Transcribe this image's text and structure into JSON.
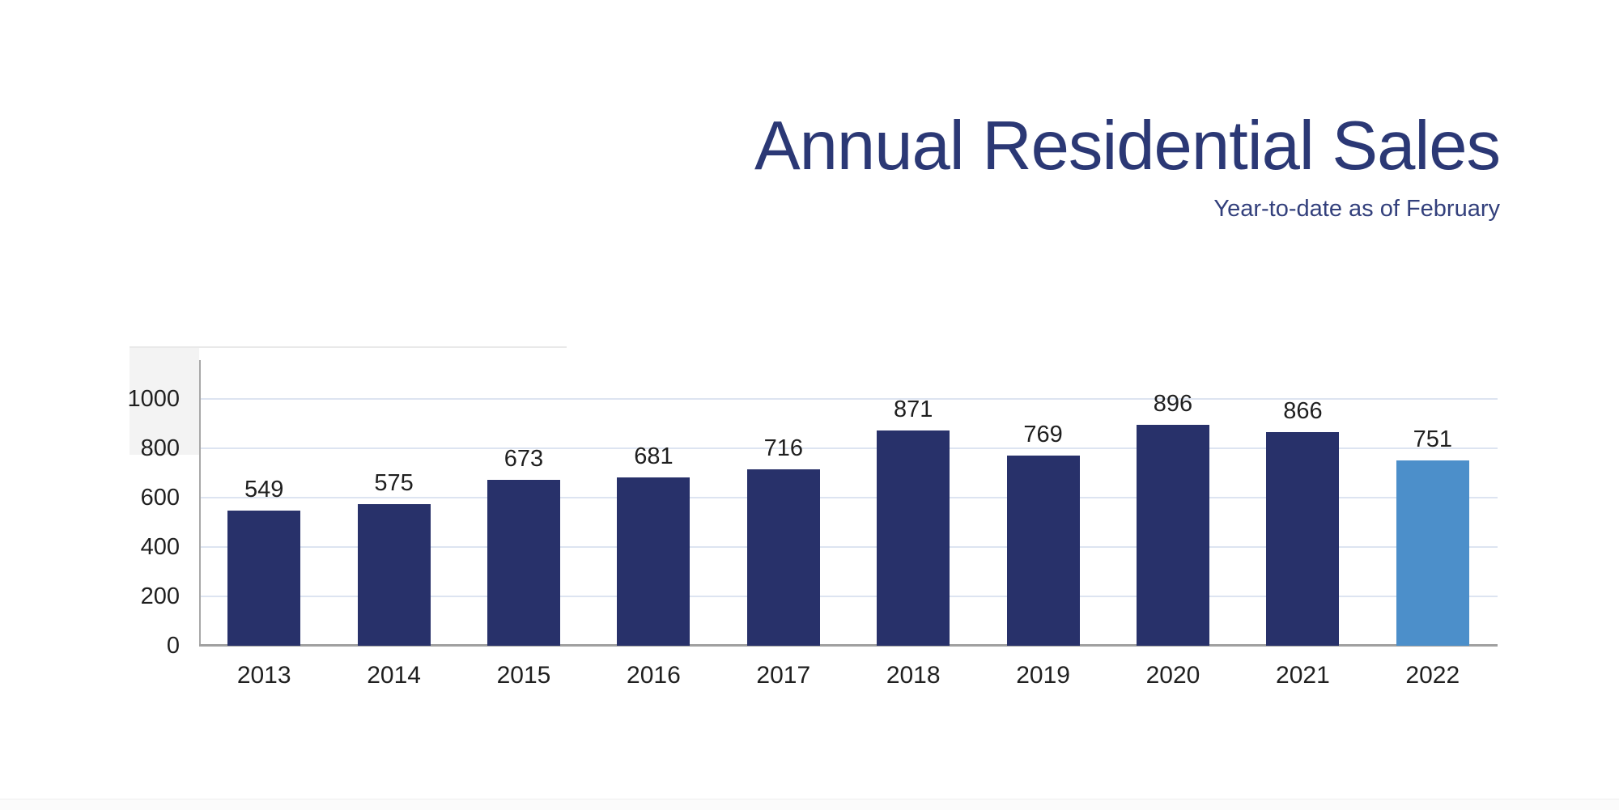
{
  "header": {
    "title": "Annual Residential Sales",
    "subtitle": "Year-to-date as of February"
  },
  "colors": {
    "title_navy": "#2b3875",
    "subtitle_navy": "#33407c",
    "bar_dark_navy": "#28316a",
    "bar_highlight_blue": "#4c8fca",
    "axis_gray": "#a0a0a0",
    "gridline_pale_blue": "#dde4f1",
    "label_text": "#1f1f1f"
  },
  "chart_data": {
    "type": "bar",
    "title": "Annual Residential Sales",
    "subtitle": "Year-to-date as of February",
    "categories": [
      "2013",
      "2014",
      "2015",
      "2016",
      "2017",
      "2018",
      "2019",
      "2020",
      "2021",
      "2022"
    ],
    "values": [
      549,
      575,
      673,
      681,
      716,
      871,
      769,
      896,
      866,
      751
    ],
    "data_labels_shown": true,
    "highlight_index": 9,
    "xlabel": "",
    "ylabel": "",
    "ylim": [
      0,
      1000
    ],
    "yticks": [
      0,
      200,
      400,
      600,
      800,
      1000
    ],
    "grid": "horizontal",
    "legend": "none",
    "bar_color": "#28316a",
    "highlight_color": "#4c8fca"
  }
}
